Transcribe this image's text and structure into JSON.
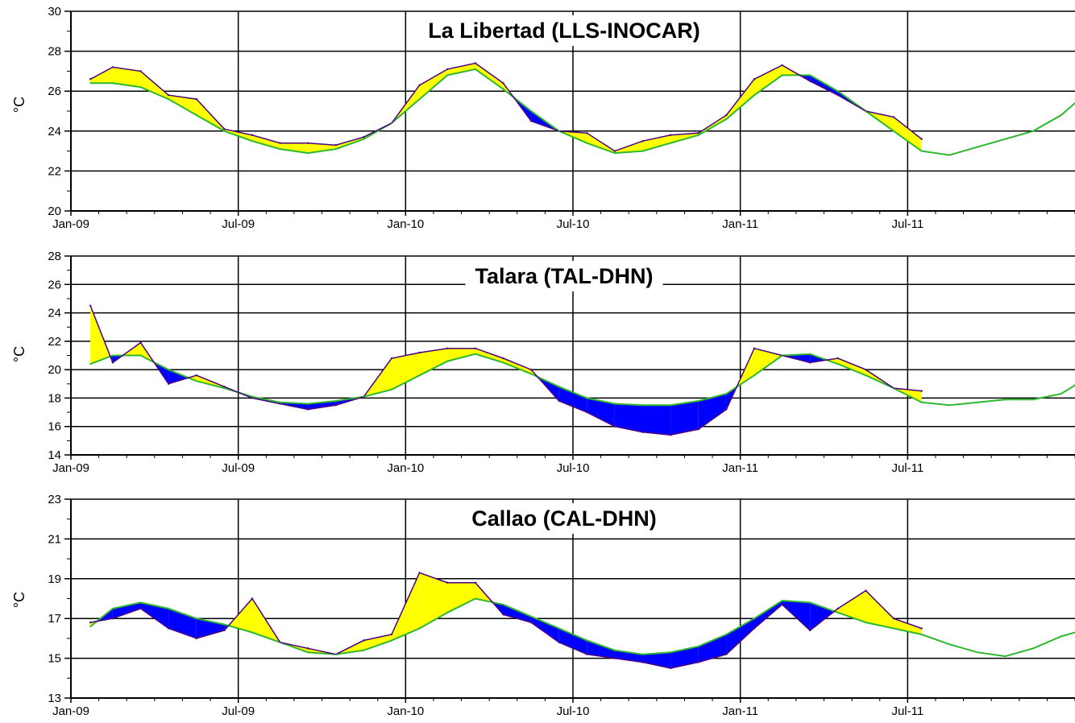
{
  "chart_data": [
    {
      "type": "area",
      "title": "La Libertad (LLS-INOCAR)",
      "ylabel": "°C",
      "ylim": [
        20,
        30
      ],
      "yticks": [
        20,
        22,
        24,
        26,
        28,
        30
      ],
      "xlim": [
        0,
        36
      ],
      "xticks": [
        {
          "x": 0,
          "label": "Jan-09"
        },
        {
          "x": 6,
          "label": "Jul-09"
        },
        {
          "x": 12,
          "label": "Jan-10"
        },
        {
          "x": 18,
          "label": "Jul-10"
        },
        {
          "x": 24,
          "label": "Jan-11"
        },
        {
          "x": 30,
          "label": "Jul-11"
        }
      ],
      "grid": true,
      "colors": {
        "warm_anomaly": "#ffff00",
        "cold_anomaly": "#0000ff",
        "observed_line": "#4b0082",
        "climatology_line": "#2db82d"
      },
      "x": [
        0.7,
        1.5,
        2.5,
        3.5,
        4.5,
        5.5,
        6.5,
        7.5,
        8.5,
        9.5,
        10.5,
        11.5,
        12.5,
        13.5,
        14.5,
        15.5,
        16.5,
        17.5,
        18.5,
        19.5,
        20.5,
        21.5,
        22.5,
        23.5,
        24.5,
        25.5,
        26.5,
        27.5,
        28.5,
        29.5,
        30.5,
        31.5,
        32.5,
        33.5,
        34.5,
        35.5,
        36
      ],
      "series": [
        {
          "values": [
            26.6,
            27.2,
            27.0,
            25.8,
            25.6,
            24.1,
            23.8,
            23.4,
            23.4,
            23.3,
            23.7,
            24.4,
            26.3,
            27.1,
            27.4,
            26.4,
            24.5,
            24.0,
            23.9,
            23.0,
            23.5,
            23.8,
            23.9,
            24.8,
            26.6,
            27.3,
            26.5,
            25.8,
            25.0,
            24.7,
            23.6,
            null,
            null,
            null,
            null,
            null,
            null
          ]
        },
        {
          "values": [
            26.4,
            26.4,
            26.2,
            25.6,
            24.8,
            24.0,
            23.5,
            23.1,
            22.9,
            23.1,
            23.6,
            24.4,
            25.6,
            26.8,
            27.1,
            26.1,
            25.0,
            24.0,
            23.4,
            22.9,
            23.0,
            23.4,
            23.8,
            24.6,
            25.8,
            26.8,
            26.8,
            26.0,
            25.0,
            24.0,
            23.0,
            22.8,
            23.2,
            23.6,
            24.0,
            24.8,
            25.4
          ]
        }
      ]
    },
    {
      "type": "area",
      "title": "Talara (TAL-DHN)",
      "ylabel": "°C",
      "ylim": [
        14,
        28
      ],
      "yticks": [
        14,
        16,
        18,
        20,
        22,
        24,
        26,
        28
      ],
      "xlim": [
        0,
        36
      ],
      "xticks": [
        {
          "x": 0,
          "label": "Jan-09"
        },
        {
          "x": 6,
          "label": "Jul-09"
        },
        {
          "x": 12,
          "label": "Jan-10"
        },
        {
          "x": 18,
          "label": "Jul-10"
        },
        {
          "x": 24,
          "label": "Jan-11"
        },
        {
          "x": 30,
          "label": "Jul-11"
        }
      ],
      "grid": true,
      "colors": {
        "warm_anomaly": "#ffff00",
        "cold_anomaly": "#0000ff",
        "observed_line": "#4b0082",
        "climatology_line": "#2db82d"
      },
      "x": [
        0.7,
        1.5,
        2.5,
        3.5,
        4.5,
        5.5,
        6.5,
        7.5,
        8.5,
        9.5,
        10.5,
        11.5,
        12.5,
        13.5,
        14.5,
        15.5,
        16.5,
        17.5,
        18.5,
        19.5,
        20.5,
        21.5,
        22.5,
        23.5,
        24.5,
        25.5,
        26.5,
        27.5,
        28.5,
        29.5,
        30.5,
        31.5,
        32.5,
        33.5,
        34.5,
        35.5,
        36
      ],
      "series": [
        {
          "values": [
            24.5,
            20.5,
            21.9,
            19.0,
            19.6,
            18.8,
            18.0,
            17.6,
            17.2,
            17.5,
            18.1,
            20.8,
            21.2,
            21.5,
            21.5,
            20.8,
            20.0,
            17.8,
            17.0,
            16.0,
            15.6,
            15.4,
            15.8,
            17.2,
            21.5,
            21.0,
            20.5,
            20.8,
            20.0,
            18.7,
            18.5,
            null,
            null,
            null,
            null,
            null,
            null
          ]
        },
        {
          "values": [
            20.4,
            21.0,
            21.0,
            20.0,
            19.2,
            18.7,
            18.1,
            17.7,
            17.6,
            17.8,
            18.1,
            18.6,
            19.6,
            20.6,
            21.1,
            20.5,
            19.7,
            18.8,
            18.0,
            17.6,
            17.5,
            17.5,
            17.8,
            18.3,
            19.6,
            21.0,
            21.1,
            20.4,
            19.6,
            18.7,
            17.7,
            17.5,
            17.7,
            17.9,
            17.9,
            18.3,
            18.9
          ]
        }
      ]
    },
    {
      "type": "area",
      "title": "Callao (CAL-DHN)",
      "ylabel": "°C",
      "ylim": [
        13,
        23
      ],
      "yticks": [
        13,
        15,
        17,
        19,
        21,
        23
      ],
      "xlim": [
        0,
        36
      ],
      "xticks": [
        {
          "x": 0,
          "label": "Jan-09"
        },
        {
          "x": 6,
          "label": "Jul-09"
        },
        {
          "x": 12,
          "label": "Jan-10"
        },
        {
          "x": 18,
          "label": "Jul-10"
        },
        {
          "x": 24,
          "label": "Jan-11"
        },
        {
          "x": 30,
          "label": "Jul-11"
        }
      ],
      "grid": true,
      "colors": {
        "warm_anomaly": "#ffff00",
        "cold_anomaly": "#0000ff",
        "observed_line": "#4b0082",
        "climatology_line": "#2db82d"
      },
      "x": [
        0.7,
        1.5,
        2.5,
        3.5,
        4.5,
        5.5,
        6.5,
        7.5,
        8.5,
        9.5,
        10.5,
        11.5,
        12.5,
        13.5,
        14.5,
        15.5,
        16.5,
        17.5,
        18.5,
        19.5,
        20.5,
        21.5,
        22.5,
        23.5,
        24.5,
        25.5,
        26.5,
        27.5,
        28.5,
        29.5,
        30.5,
        31.5,
        32.5,
        33.5,
        34.5,
        35.5,
        36
      ],
      "series": [
        {
          "values": [
            16.8,
            17.0,
            17.5,
            16.5,
            16.0,
            16.4,
            18.0,
            15.8,
            15.5,
            15.2,
            15.9,
            16.2,
            19.3,
            18.8,
            18.8,
            17.2,
            16.8,
            15.8,
            15.2,
            15.0,
            14.8,
            14.5,
            14.8,
            15.2,
            16.5,
            17.7,
            16.4,
            17.5,
            18.4,
            17.0,
            16.5,
            null,
            null,
            null,
            null,
            null,
            null
          ]
        },
        {
          "values": [
            16.6,
            17.5,
            17.8,
            17.5,
            17.0,
            16.7,
            16.3,
            15.8,
            15.3,
            15.2,
            15.4,
            15.9,
            16.5,
            17.3,
            18.0,
            17.7,
            17.1,
            16.5,
            15.9,
            15.4,
            15.2,
            15.3,
            15.6,
            16.2,
            17.0,
            17.9,
            17.8,
            17.3,
            16.8,
            16.5,
            16.2,
            15.7,
            15.3,
            15.1,
            15.5,
            16.1,
            16.3
          ]
        }
      ]
    }
  ]
}
